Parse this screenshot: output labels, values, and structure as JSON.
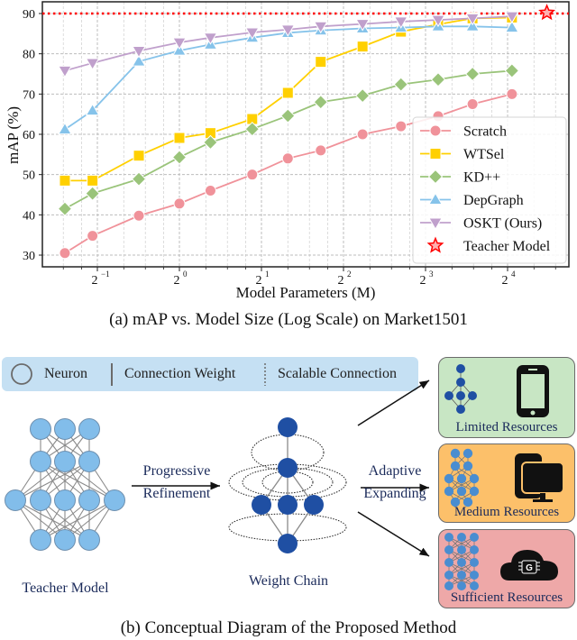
{
  "chart_data": {
    "type": "line",
    "title": "",
    "caption": "(a) mAP vs. Model Size (Log Scale) on Market1501",
    "xlabel": "Model Parameters (M)",
    "ylabel": "mAP (%)",
    "xscale": "log2",
    "xlim": [
      0.33,
      27
    ],
    "ylim": [
      28,
      92
    ],
    "xticks": [
      "2^-1",
      "2^0",
      "2^1",
      "2^2",
      "2^3",
      "2^4"
    ],
    "yticks": [
      30,
      40,
      50,
      60,
      70,
      80,
      90
    ],
    "grid": true,
    "legend_position": "lower right",
    "x": [
      0.38,
      0.48,
      0.71,
      1.0,
      1.3,
      1.85,
      2.5,
      3.3,
      4.7,
      6.5,
      8.9,
      11.9,
      16.6
    ],
    "series": [
      {
        "name": "Scratch",
        "marker": "circle",
        "color": "#f0929a",
        "values": [
          30.5,
          34.8,
          39.8,
          42.8,
          46.0,
          50.0,
          54.0,
          56.0,
          60.0,
          62.0,
          64.5,
          67.5,
          70.0
        ]
      },
      {
        "name": "WTSel",
        "marker": "square",
        "color": "#ffd000",
        "values": [
          48.5,
          48.5,
          54.7,
          59.1,
          60.3,
          63.8,
          70.3,
          78.0,
          81.8,
          85.5,
          87.3,
          88.8,
          89.0
        ]
      },
      {
        "name": "KD++",
        "marker": "diamond",
        "color": "#9ac47a",
        "values": [
          41.5,
          45.3,
          48.9,
          54.3,
          58.0,
          61.3,
          64.6,
          68.0,
          69.6,
          72.4,
          73.6,
          75.0,
          75.8
        ]
      },
      {
        "name": "DepGraph",
        "marker": "triangle-up",
        "color": "#86c3ea",
        "values": [
          61.2,
          65.9,
          78.1,
          80.8,
          82.3,
          84.0,
          85.2,
          85.8,
          86.3,
          86.5,
          86.8,
          86.8,
          86.5
        ]
      },
      {
        "name": "OSKT (Ours)",
        "marker": "triangle-down",
        "color": "#c0a0cc",
        "values": [
          75.8,
          77.7,
          80.7,
          82.8,
          84.0,
          85.3,
          86.0,
          86.8,
          87.4,
          88.0,
          88.4,
          88.8,
          89.3
        ]
      },
      {
        "name": "Teacher Model",
        "marker": "star",
        "color": "#ff0000",
        "x": [
          22.3
        ],
        "values": [
          90.2
        ],
        "reference_line": 90.2
      }
    ]
  },
  "captions": {
    "a": "(a) mAP vs. Model Size (Log Scale) on Market1501",
    "b": "(b) Conceptual Diagram of the Proposed Method"
  },
  "diagram": {
    "legend": {
      "neuron": "Neuron",
      "connection_weight": "Connection Weight",
      "scalable_connection": "Scalable Connection"
    },
    "teacher_label": "Teacher Model",
    "chain_label": "Weight Chain",
    "arrow1": {
      "line1": "Progressive",
      "line2": "Refinement"
    },
    "arrow2": {
      "line1": "Adaptive",
      "line2": "Expanding"
    },
    "resources": [
      {
        "label": "Limited Resources",
        "color": "#c8e6c4",
        "device": "phone-icon"
      },
      {
        "label": "Medium Resources",
        "color": "#fcc06a",
        "device": "desktop-icon"
      },
      {
        "label": "Sufficient Resources",
        "color": "#eea8a8",
        "device": "cloud-gpu-icon"
      }
    ],
    "colors": {
      "neuron_light": "#82bdea",
      "neuron_dark": "#1f4fa3",
      "legend_bg": "#c5e0f3"
    }
  }
}
